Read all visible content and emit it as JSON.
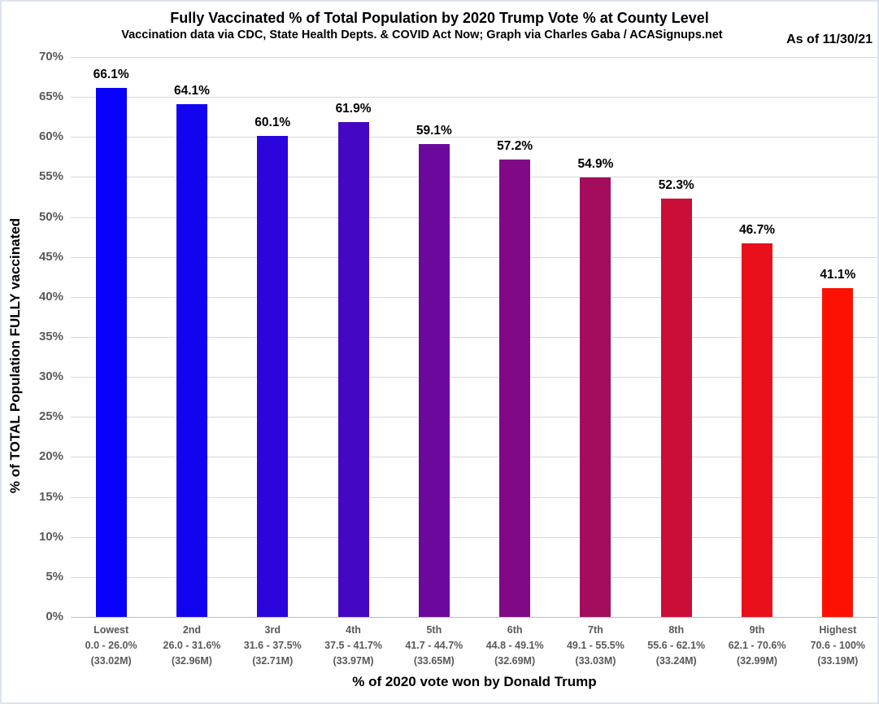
{
  "header": {
    "title": "Fully Vaccinated % of Total Population by 2020 Trump Vote % at County Level",
    "subtitle": "Vaccination data via CDC, State Health Depts. & COVID Act Now; Graph via Charles Gaba / ACASignups.net",
    "as_of": "As of 11/30/21"
  },
  "chart_data": {
    "type": "bar",
    "title": "Fully Vaccinated % of Total Population by 2020 Trump Vote % at County Level",
    "subtitle": "Vaccination data via CDC, State Health Depts. & COVID Act Now; Graph via Charles Gaba / ACASignups.net",
    "annotation": "As of 11/30/21",
    "xlabel": "% of 2020 vote won by Donald Trump",
    "ylabel": "% of TOTAL Population FULLY vaccinated",
    "ylim": [
      0,
      70
    ],
    "ytick_step": 5,
    "ytick_suffix": "%",
    "grid": true,
    "legend": "none",
    "categories": [
      {
        "name": "Lowest",
        "range": "0.0 - 26.0%",
        "population": "(33.02M)"
      },
      {
        "name": "2nd",
        "range": "26.0 - 31.6%",
        "population": "(32.96M)"
      },
      {
        "name": "3rd",
        "range": "31.6 - 37.5%",
        "population": "(32.71M)"
      },
      {
        "name": "4th",
        "range": "37.5 - 41.7%",
        "population": "(33.97M)"
      },
      {
        "name": "5th",
        "range": "41.7 - 44.7%",
        "population": "(33.65M)"
      },
      {
        "name": "6th",
        "range": "44.8 - 49.1%",
        "population": "(32.69M)"
      },
      {
        "name": "7th",
        "range": "49.1 - 55.5%",
        "population": "(33.03M)"
      },
      {
        "name": "8th",
        "range": "55.6 - 62.1%",
        "population": "(33.24M)"
      },
      {
        "name": "9th",
        "range": "62.1 - 70.6%",
        "population": "(32.99M)"
      },
      {
        "name": "Highest",
        "range": "70.6 - 100%",
        "population": "(33.19M)"
      }
    ],
    "values": [
      66.1,
      64.1,
      60.1,
      61.9,
      59.1,
      57.2,
      54.9,
      52.3,
      46.7,
      41.1
    ],
    "value_labels": [
      "66.1%",
      "64.1%",
      "60.1%",
      "61.9%",
      "59.1%",
      "57.2%",
      "54.9%",
      "52.3%",
      "46.7%",
      "41.1%"
    ],
    "bar_colors": [
      "#0802FD",
      "#1203F0",
      "#2B05DC",
      "#4407C2",
      "#6B099C",
      "#800A85",
      "#A40C5E",
      "#CA0E37",
      "#E7101B",
      "#FD1202"
    ]
  },
  "style_colors": {
    "axis_text_gray": "#595959",
    "gridline": "#d9d9d9",
    "baseline": "#bfbfbf",
    "frame_border": "#dde3ee",
    "background": "#ffffff"
  }
}
